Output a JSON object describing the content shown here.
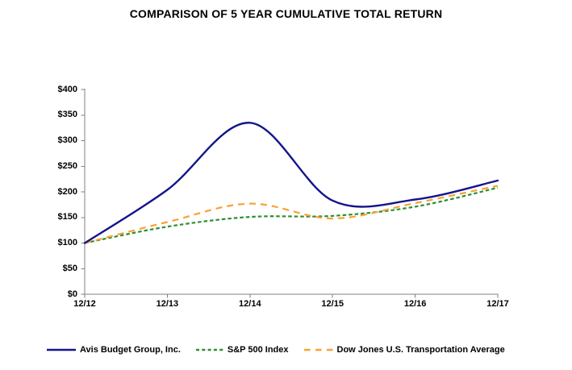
{
  "title": "COMPARISON OF 5 YEAR CUMULATIVE TOTAL RETURN",
  "chart_data": {
    "type": "line",
    "x": [
      "12/12",
      "12/13",
      "12/14",
      "12/15",
      "12/16",
      "12/17"
    ],
    "series": [
      {
        "name": "Avis Budget Group, Inc.",
        "values": [
          100,
          204,
          335,
          183,
          185,
          222
        ],
        "color": "#14148c",
        "line_style": "solid"
      },
      {
        "name": "S&P 500 Index",
        "values": [
          100,
          132,
          151,
          153,
          171,
          208
        ],
        "color": "#2e8f2e",
        "line_style": "dashed-short"
      },
      {
        "name": "Dow Jones U.S. Transportation Average",
        "values": [
          100,
          141,
          177,
          148,
          178,
          212
        ],
        "color": "#f7a233",
        "line_style": "dashed-long"
      }
    ],
    "ylim": [
      0,
      400
    ],
    "y_tick_values": [
      0,
      50,
      100,
      150,
      200,
      250,
      300,
      350,
      400
    ],
    "y_tick_labels": [
      "$0",
      "$50",
      "$100",
      "$150",
      "$200",
      "$250",
      "$300",
      "$350",
      "$400"
    ],
    "grid": "off",
    "smooth": true,
    "legend_position": "bottom",
    "axis_color": "#808080"
  }
}
